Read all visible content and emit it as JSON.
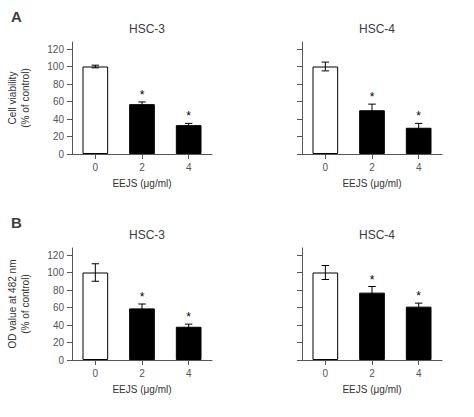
{
  "chart_data": [
    {
      "type": "bar",
      "title": "HSC-3",
      "panel_label": "A",
      "categories": [
        "0",
        "2",
        "4"
      ],
      "values": [
        100,
        57,
        33
      ],
      "errors": [
        1.5,
        2.5,
        2.0
      ],
      "colors": [
        "white",
        "black",
        "black"
      ],
      "annotations": [
        {
          "category": "2",
          "text": "*"
        },
        {
          "category": "4",
          "text": "*"
        }
      ],
      "xlabel": "EEJS (μg/ml)",
      "ylabel": "Cell viability\n(% of control)",
      "ylim": [
        0,
        128
      ],
      "yticks": [
        0,
        20,
        40,
        60,
        80,
        100,
        120
      ],
      "grid": false
    },
    {
      "type": "bar",
      "title": "HSC-4",
      "categories": [
        "0",
        "2",
        "4"
      ],
      "values": [
        100,
        50,
        30
      ],
      "errors": [
        5,
        7,
        5
      ],
      "colors": [
        "white",
        "black",
        "black"
      ],
      "annotations": [
        {
          "category": "2",
          "text": "*"
        },
        {
          "category": "4",
          "text": "*"
        }
      ],
      "xlabel": "EEJS (μg/ml)",
      "ylim": [
        0,
        128
      ],
      "yticks": [
        0,
        20,
        40,
        60,
        80,
        100,
        120
      ],
      "grid": false,
      "tick_labels": "x"
    },
    {
      "type": "bar",
      "title": "HSC-3",
      "panel_label": "B",
      "categories": [
        "0",
        "2",
        "4"
      ],
      "values": [
        100,
        59,
        38
      ],
      "errors": [
        10,
        5,
        3
      ],
      "colors": [
        "white",
        "black",
        "black"
      ],
      "annotations": [
        {
          "category": "2",
          "text": "*"
        },
        {
          "category": "4",
          "text": "*"
        }
      ],
      "xlabel": "EEJS (μg/ml)",
      "ylabel": "OD value at 482 nm\n(% of control)",
      "ylim": [
        0,
        128
      ],
      "yticks": [
        0,
        20,
        40,
        60,
        80,
        100,
        120
      ],
      "grid": false
    },
    {
      "type": "bar",
      "title": "HSC-4",
      "categories": [
        "0",
        "2",
        "4"
      ],
      "values": [
        100,
        77,
        61
      ],
      "errors": [
        8,
        7,
        4
      ],
      "colors": [
        "white",
        "black",
        "black"
      ],
      "annotations": [
        {
          "category": "2",
          "text": "*"
        },
        {
          "category": "4",
          "text": "*"
        }
      ],
      "xlabel": "EEJS (μg/ml)",
      "ylim": [
        0,
        128
      ],
      "yticks": [
        0,
        20,
        40,
        60,
        80,
        100,
        120
      ],
      "grid": false,
      "tick_labels": "x"
    }
  ]
}
